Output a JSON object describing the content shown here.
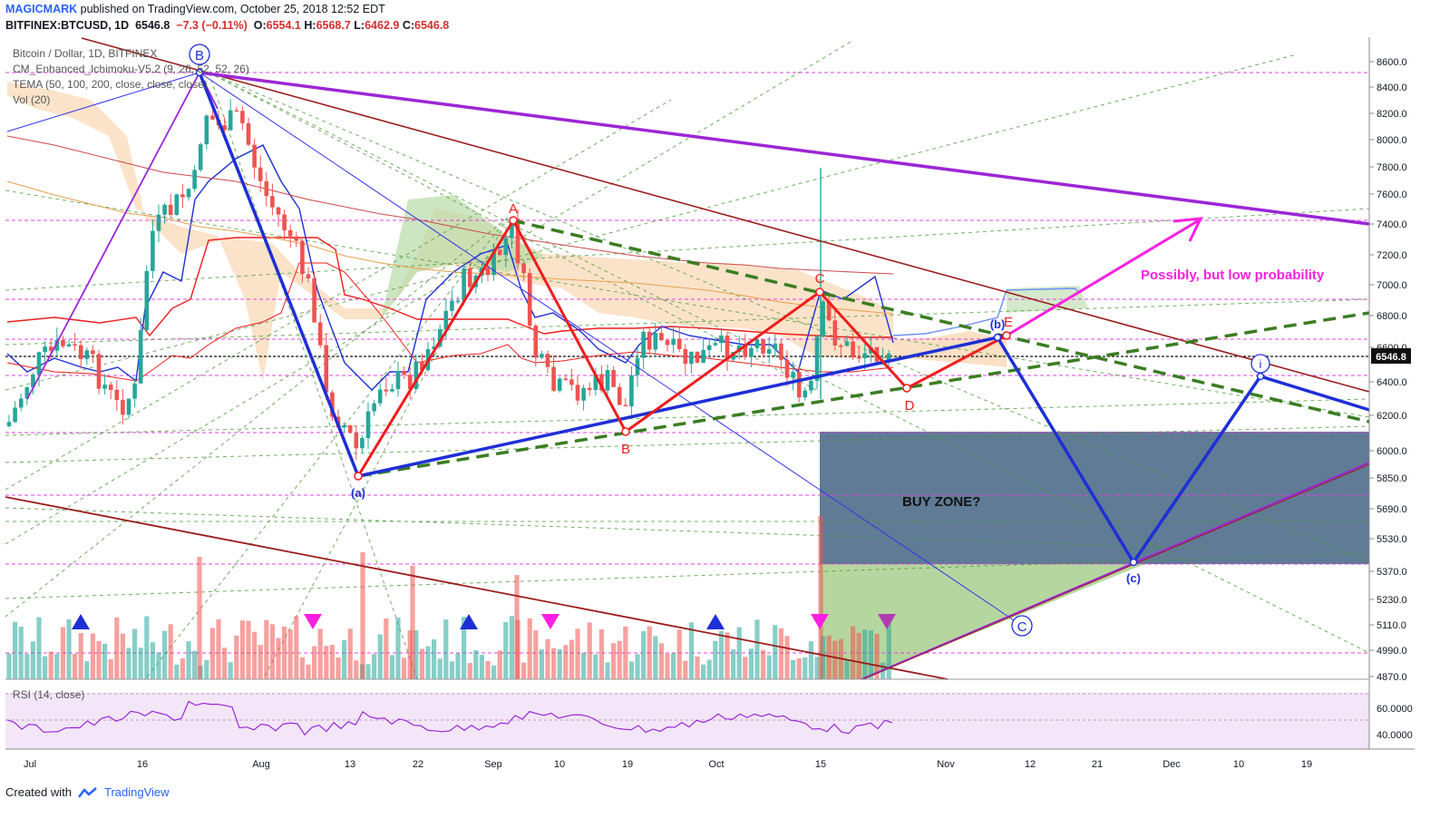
{
  "header": {
    "author": "MAGICMARK",
    "published": "published on TradingView.com, October 25, 2018 12:52 EDT",
    "symbol": "BITFINEX:BTCUSD, 1D",
    "last": "6546.8",
    "change": "−7.3 (−0.11%)",
    "o_label": "O:",
    "o": "6554.1",
    "h_label": "H:",
    "h": "6568.7",
    "l_label": "L:",
    "l": "6462.9",
    "c_label": "C:",
    "c": "6546.8"
  },
  "legend": {
    "title": "Bitcoin / Dollar, 1D, BITFINEX",
    "ichimoku": "CM_Enhanced_Ichimoku-V5.2 (9, 26, 52, 52, 26)",
    "tema": "TEMA (50, 100, 200, close, close, close)",
    "vol": "Vol (20)"
  },
  "rsi_label": "RSI (14, close)",
  "footer": {
    "created": "Created with",
    "brand": "TradingView"
  },
  "colors": {
    "up": "#26a69a",
    "down": "#ef5350",
    "purple": "#9c27d6",
    "blue": "#1e2fd6",
    "red": "#ef1d1d",
    "darkred": "#9b1c1c",
    "magenta": "#ff1fe0",
    "buyzone": "#4f6d8a",
    "greenzone": "#a9cf8e"
  },
  "chart_data": {
    "type": "candlestick",
    "symbol": "BITFINEX:BTCUSD",
    "interval": "1D",
    "y_ticks": [
      "8600.0",
      "8400.0",
      "8200.0",
      "8000.0",
      "7800.0",
      "7600.0",
      "7400.0",
      "7200.0",
      "7000.0",
      "6800.0",
      "6600.0",
      "6400.0",
      "6200.0",
      "6000.0",
      "5850.0",
      "5690.0",
      "5530.0",
      "5370.0",
      "5230.0",
      "5110.0",
      "4990.0",
      "4870.0"
    ],
    "last_price_label": "6546.8",
    "x_ticks": [
      "Jul",
      "16",
      "Aug",
      "13",
      "22",
      "Sep",
      "10",
      "19",
      "Oct",
      "15",
      "Nov",
      "12",
      "21",
      "Dec",
      "10",
      "19"
    ],
    "rsi_ticks": [
      "60.0000",
      "40.0000"
    ],
    "pivots": [
      {
        "label": "B",
        "price": 8500
      },
      {
        "label": "(a)",
        "price": 5860
      },
      {
        "label": "A",
        "price": 7420
      },
      {
        "label": "B",
        "price": 6120
      },
      {
        "label": "C",
        "price": 6950
      },
      {
        "label": "D",
        "price": 6360
      },
      {
        "label": "(b)",
        "price": 6660
      },
      {
        "label": "E",
        "price": 6680
      },
      {
        "label": "(c)",
        "price": 5400
      },
      {
        "label": "i",
        "price": 6430
      },
      {
        "label": "C",
        "price": null
      }
    ],
    "annotations": [
      "BUY ZONE?",
      "Possibly, but low probability"
    ]
  }
}
